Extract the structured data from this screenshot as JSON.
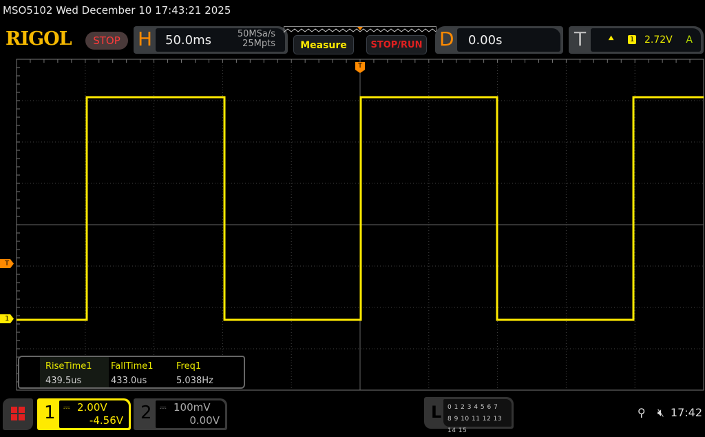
{
  "header": {
    "title": "MSO5102  Wed December 10 17:43:21 2025",
    "logo": "RIGOL",
    "run_state": "STOP"
  },
  "horizontal": {
    "letter": "H",
    "timebase": "50.0ms",
    "sample_rate": "50MSa/s",
    "memory_depth": "25Mpts"
  },
  "buttons": {
    "measure": "Measure",
    "stop_run": "STOP/RUN"
  },
  "delay": {
    "letter": "D",
    "value": "0.00s"
  },
  "trigger": {
    "letter": "T",
    "edge_icon": "rising-edge-icon",
    "source": "1",
    "level": "2.72V",
    "mode": "A"
  },
  "markers": {
    "trigger_level": "T",
    "channel1": "1",
    "trigger_position": "T"
  },
  "measurements": [
    {
      "label": "RiseTime1",
      "value": "439.5us"
    },
    {
      "label": "FallTime1",
      "value": "433.0us"
    },
    {
      "label": "Freq1",
      "value": "5.038Hz"
    }
  ],
  "channels": [
    {
      "num": "1",
      "coupling_icon": "dc-coupling-icon",
      "scale": "2.00V",
      "offset": "-4.56V",
      "color": "#ffea00",
      "active": true
    },
    {
      "num": "2",
      "coupling_icon": "dc-coupling-icon",
      "scale": "100mV",
      "offset": "0.00V",
      "color": "#888888",
      "active": false
    }
  ],
  "logic": {
    "letter": "L",
    "row1": "0 1 2 3  4 5 6 7",
    "row2": "8 9 10 11 12 13 14 15"
  },
  "status": {
    "clock": "17:42",
    "usb_icon": "usb-icon",
    "sound_icon": "speaker-muted-icon"
  },
  "colors": {
    "trace": "#ffea00",
    "accent": "#ff8a00",
    "grid": "#555555"
  }
}
